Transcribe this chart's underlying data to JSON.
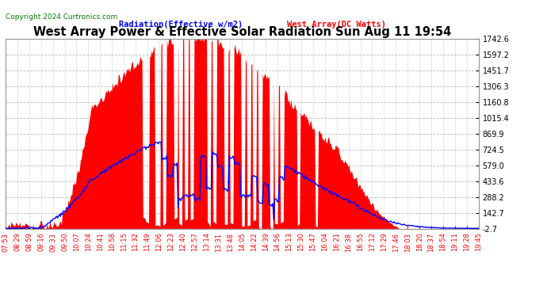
{
  "title": "West Array Power & Effective Solar Radiation Sun Aug 11 19:54",
  "copyright": "Copyright 2024 Curtronics.com",
  "legend_radiation": "Radiation(Effective w/m2)",
  "legend_west": "West Array(DC Watts)",
  "ylim": [
    -2.7,
    1742.6
  ],
  "yticks": [
    -2.7,
    142.7,
    288.2,
    433.6,
    579.0,
    724.5,
    869.9,
    1015.4,
    1160.8,
    1306.3,
    1451.7,
    1597.2,
    1742.6
  ],
  "bg_color": "#ffffff",
  "plot_bg": "#ffffff",
  "grid_color": "#aaaaaa",
  "title_color": "#000000",
  "copyright_color": "#008000",
  "radiation_color": "#0000ff",
  "west_array_color": "#ff0000",
  "x_label_color": "#ff0000",
  "ytick_color": "#000000",
  "x_labels": [
    "07:53",
    "08:29",
    "08:59",
    "09:16",
    "09:33",
    "09:50",
    "10:07",
    "10:24",
    "10:41",
    "10:58",
    "11:15",
    "11:32",
    "11:49",
    "12:06",
    "12:23",
    "12:40",
    "12:57",
    "13:14",
    "13:31",
    "13:48",
    "14:05",
    "14:22",
    "14:39",
    "14:56",
    "15:13",
    "15:30",
    "15:47",
    "16:04",
    "16:21",
    "16:38",
    "16:55",
    "17:12",
    "17:29",
    "17:46",
    "18:03",
    "18:20",
    "18:37",
    "18:54",
    "19:11",
    "19:28",
    "19:45"
  ]
}
